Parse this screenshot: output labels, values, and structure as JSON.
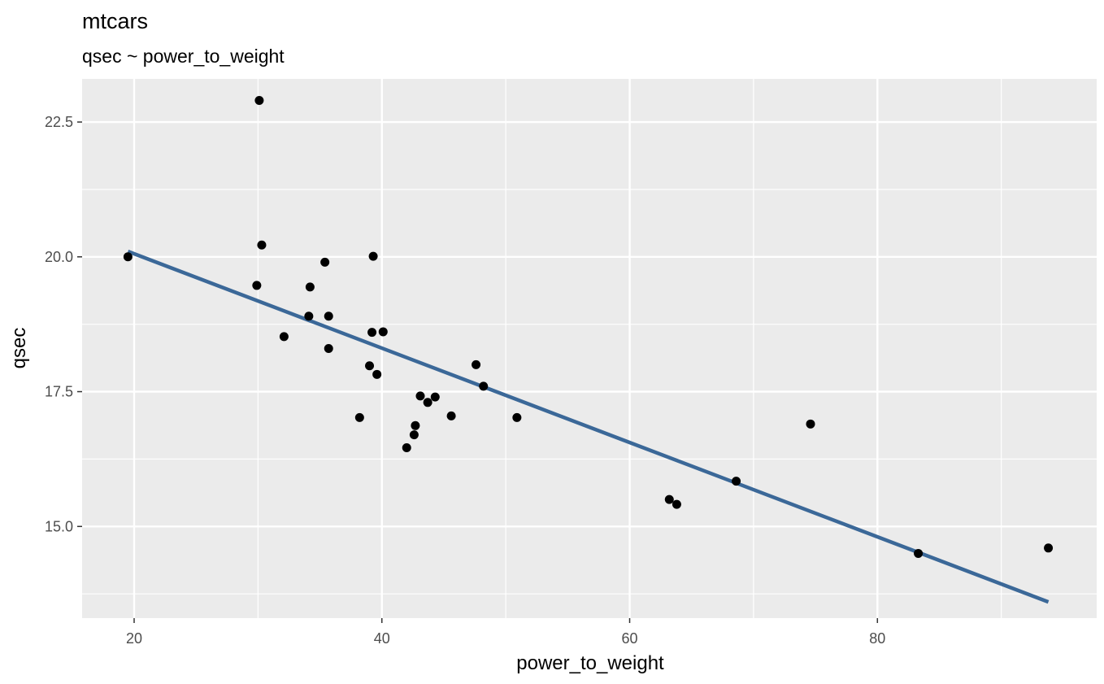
{
  "chart_data": {
    "type": "scatter",
    "title": "mtcars",
    "subtitle": "qsec ~ power_to_weight",
    "xlabel": "power_to_weight",
    "ylabel": "qsec",
    "xlim": [
      15.8,
      97.7
    ],
    "ylim": [
      13.3,
      23.3
    ],
    "x_ticks": [
      20,
      40,
      60,
      80
    ],
    "x_tick_labels": [
      "20",
      "40",
      "60",
      "80"
    ],
    "y_ticks": [
      15.0,
      17.5,
      20.0,
      22.5
    ],
    "y_tick_labels": [
      "15.0",
      "17.5",
      "20.0",
      "22.5"
    ],
    "grid": true,
    "points": [
      {
        "x": 19.5,
        "y": 20.0
      },
      {
        "x": 30.1,
        "y": 22.9
      },
      {
        "x": 30.3,
        "y": 20.22
      },
      {
        "x": 29.9,
        "y": 19.47
      },
      {
        "x": 32.1,
        "y": 18.52
      },
      {
        "x": 34.1,
        "y": 18.9
      },
      {
        "x": 34.2,
        "y": 19.44
      },
      {
        "x": 35.4,
        "y": 19.9
      },
      {
        "x": 35.7,
        "y": 18.9
      },
      {
        "x": 35.7,
        "y": 18.3
      },
      {
        "x": 38.2,
        "y": 17.02
      },
      {
        "x": 39.0,
        "y": 17.98
      },
      {
        "x": 39.2,
        "y": 18.6
      },
      {
        "x": 39.3,
        "y": 20.01
      },
      {
        "x": 39.6,
        "y": 17.82
      },
      {
        "x": 40.1,
        "y": 18.61
      },
      {
        "x": 42.0,
        "y": 16.46
      },
      {
        "x": 42.6,
        "y": 16.7
      },
      {
        "x": 42.7,
        "y": 16.87
      },
      {
        "x": 43.1,
        "y": 17.42
      },
      {
        "x": 43.7,
        "y": 17.3
      },
      {
        "x": 44.3,
        "y": 17.4
      },
      {
        "x": 45.6,
        "y": 17.05
      },
      {
        "x": 47.6,
        "y": 18.0
      },
      {
        "x": 48.2,
        "y": 17.6
      },
      {
        "x": 50.9,
        "y": 17.02
      },
      {
        "x": 63.2,
        "y": 15.5
      },
      {
        "x": 63.8,
        "y": 15.41
      },
      {
        "x": 68.6,
        "y": 15.84
      },
      {
        "x": 74.6,
        "y": 16.9
      },
      {
        "x": 83.3,
        "y": 14.5
      },
      {
        "x": 93.8,
        "y": 14.6
      }
    ],
    "fit_line": {
      "x": [
        19.5,
        93.8
      ],
      "y": [
        20.1,
        13.6
      ]
    },
    "colors": {
      "panel": "#ebebeb",
      "grid": "#ffffff",
      "point": "#000000",
      "fit_line": "#3b6898"
    }
  }
}
